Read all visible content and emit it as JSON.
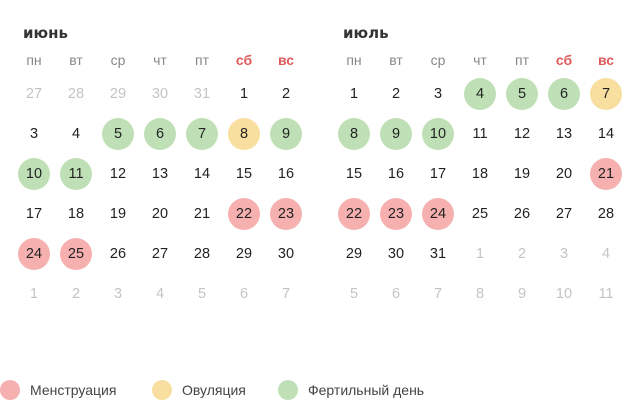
{
  "legend": {
    "menstruation": "Менструация",
    "ovulation": "Овуляция",
    "fertile": "Фертильный день",
    "colors": {
      "menstruation": "#f7b0b0",
      "ovulation": "#f8dfa0",
      "fertile": "#bfe0b6"
    }
  },
  "months": [
    {
      "title": "июнь",
      "weekdays": [
        {
          "label": "пн",
          "weekend": false
        },
        {
          "label": "вт",
          "weekend": false
        },
        {
          "label": "ср",
          "weekend": false
        },
        {
          "label": "чт",
          "weekend": false
        },
        {
          "label": "пт",
          "weekend": false
        },
        {
          "label": "сб",
          "weekend": true
        },
        {
          "label": "вс",
          "weekend": true
        }
      ],
      "days": [
        {
          "n": "27",
          "other": true,
          "type": ""
        },
        {
          "n": "28",
          "other": true,
          "type": ""
        },
        {
          "n": "29",
          "other": true,
          "type": ""
        },
        {
          "n": "30",
          "other": true,
          "type": ""
        },
        {
          "n": "31",
          "other": true,
          "type": ""
        },
        {
          "n": "1",
          "other": false,
          "type": ""
        },
        {
          "n": "2",
          "other": false,
          "type": ""
        },
        {
          "n": "3",
          "other": false,
          "type": ""
        },
        {
          "n": "4",
          "other": false,
          "type": ""
        },
        {
          "n": "5",
          "other": false,
          "type": "fertile"
        },
        {
          "n": "6",
          "other": false,
          "type": "fertile"
        },
        {
          "n": "7",
          "other": false,
          "type": "fertile"
        },
        {
          "n": "8",
          "other": false,
          "type": "ovulation"
        },
        {
          "n": "9",
          "other": false,
          "type": "fertile"
        },
        {
          "n": "10",
          "other": false,
          "type": "fertile"
        },
        {
          "n": "11",
          "other": false,
          "type": "fertile"
        },
        {
          "n": "12",
          "other": false,
          "type": ""
        },
        {
          "n": "13",
          "other": false,
          "type": ""
        },
        {
          "n": "14",
          "other": false,
          "type": ""
        },
        {
          "n": "15",
          "other": false,
          "type": ""
        },
        {
          "n": "16",
          "other": false,
          "type": ""
        },
        {
          "n": "17",
          "other": false,
          "type": ""
        },
        {
          "n": "18",
          "other": false,
          "type": ""
        },
        {
          "n": "19",
          "other": false,
          "type": ""
        },
        {
          "n": "20",
          "other": false,
          "type": ""
        },
        {
          "n": "21",
          "other": false,
          "type": ""
        },
        {
          "n": "22",
          "other": false,
          "type": "menstruation"
        },
        {
          "n": "23",
          "other": false,
          "type": "menstruation"
        },
        {
          "n": "24",
          "other": false,
          "type": "menstruation"
        },
        {
          "n": "25",
          "other": false,
          "type": "menstruation"
        },
        {
          "n": "26",
          "other": false,
          "type": ""
        },
        {
          "n": "27",
          "other": false,
          "type": ""
        },
        {
          "n": "28",
          "other": false,
          "type": ""
        },
        {
          "n": "29",
          "other": false,
          "type": ""
        },
        {
          "n": "30",
          "other": false,
          "type": ""
        },
        {
          "n": "1",
          "other": true,
          "type": ""
        },
        {
          "n": "2",
          "other": true,
          "type": ""
        },
        {
          "n": "3",
          "other": true,
          "type": ""
        },
        {
          "n": "4",
          "other": true,
          "type": ""
        },
        {
          "n": "5",
          "other": true,
          "type": ""
        },
        {
          "n": "6",
          "other": true,
          "type": ""
        },
        {
          "n": "7",
          "other": true,
          "type": ""
        }
      ]
    },
    {
      "title": "июль",
      "weekdays": [
        {
          "label": "пн",
          "weekend": false
        },
        {
          "label": "вт",
          "weekend": false
        },
        {
          "label": "ср",
          "weekend": false
        },
        {
          "label": "чт",
          "weekend": false
        },
        {
          "label": "пт",
          "weekend": false
        },
        {
          "label": "сб",
          "weekend": true
        },
        {
          "label": "вс",
          "weekend": true
        }
      ],
      "days": [
        {
          "n": "1",
          "other": false,
          "type": ""
        },
        {
          "n": "2",
          "other": false,
          "type": ""
        },
        {
          "n": "3",
          "other": false,
          "type": ""
        },
        {
          "n": "4",
          "other": false,
          "type": "fertile"
        },
        {
          "n": "5",
          "other": false,
          "type": "fertile"
        },
        {
          "n": "6",
          "other": false,
          "type": "fertile"
        },
        {
          "n": "7",
          "other": false,
          "type": "ovulation"
        },
        {
          "n": "8",
          "other": false,
          "type": "fertile"
        },
        {
          "n": "9",
          "other": false,
          "type": "fertile"
        },
        {
          "n": "10",
          "other": false,
          "type": "fertile"
        },
        {
          "n": "11",
          "other": false,
          "type": ""
        },
        {
          "n": "12",
          "other": false,
          "type": ""
        },
        {
          "n": "13",
          "other": false,
          "type": ""
        },
        {
          "n": "14",
          "other": false,
          "type": ""
        },
        {
          "n": "15",
          "other": false,
          "type": ""
        },
        {
          "n": "16",
          "other": false,
          "type": ""
        },
        {
          "n": "17",
          "other": false,
          "type": ""
        },
        {
          "n": "18",
          "other": false,
          "type": ""
        },
        {
          "n": "19",
          "other": false,
          "type": ""
        },
        {
          "n": "20",
          "other": false,
          "type": ""
        },
        {
          "n": "21",
          "other": false,
          "type": "menstruation"
        },
        {
          "n": "22",
          "other": false,
          "type": "menstruation"
        },
        {
          "n": "23",
          "other": false,
          "type": "menstruation"
        },
        {
          "n": "24",
          "other": false,
          "type": "menstruation"
        },
        {
          "n": "25",
          "other": false,
          "type": ""
        },
        {
          "n": "26",
          "other": false,
          "type": ""
        },
        {
          "n": "27",
          "other": false,
          "type": ""
        },
        {
          "n": "28",
          "other": false,
          "type": ""
        },
        {
          "n": "29",
          "other": false,
          "type": ""
        },
        {
          "n": "30",
          "other": false,
          "type": ""
        },
        {
          "n": "31",
          "other": false,
          "type": ""
        },
        {
          "n": "1",
          "other": true,
          "type": ""
        },
        {
          "n": "2",
          "other": true,
          "type": ""
        },
        {
          "n": "3",
          "other": true,
          "type": ""
        },
        {
          "n": "4",
          "other": true,
          "type": ""
        },
        {
          "n": "5",
          "other": true,
          "type": ""
        },
        {
          "n": "6",
          "other": true,
          "type": ""
        },
        {
          "n": "7",
          "other": true,
          "type": ""
        },
        {
          "n": "8",
          "other": true,
          "type": ""
        },
        {
          "n": "9",
          "other": true,
          "type": ""
        },
        {
          "n": "10",
          "other": true,
          "type": ""
        },
        {
          "n": "11",
          "other": true,
          "type": ""
        }
      ]
    }
  ]
}
